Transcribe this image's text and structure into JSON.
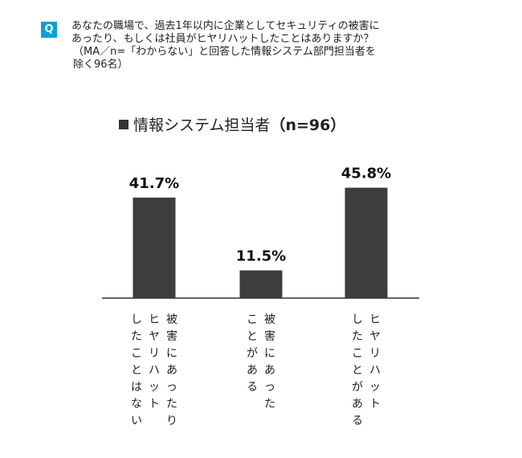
{
  "question": {
    "badge": "Q",
    "lines": [
      "あなたの職場で、過去1年以内に企業としてセキュリティの被害に",
      "あったり、もしくは社員がヒヤリハットしたことはありますか？",
      "（MA／n=「わからない」と回答した情報システム部門担当者を",
      "除く96名）"
    ]
  },
  "chart_title": {
    "label": "情報システム担当者",
    "n": "（n=96）"
  },
  "chart_data": {
    "type": "bar",
    "categories": [
      "被害にあったりヒヤリハットしたことはない",
      "被害にあったことがある",
      "ヒヤリハットしたことがある"
    ],
    "category_columns": [
      [
        "被害にあったり",
        "ヒヤリハット",
        "したことはない"
      ],
      [
        "被害にあった",
        "ことがある"
      ],
      [
        "ヒヤリハット",
        "したことがある"
      ]
    ],
    "values": [
      41.7,
      11.5,
      45.8
    ],
    "data_labels": [
      "41.7%",
      "11.5%",
      "45.8%"
    ],
    "ylim": [
      0,
      50
    ],
    "bar_color": "#3d3d3d",
    "grid": false
  }
}
